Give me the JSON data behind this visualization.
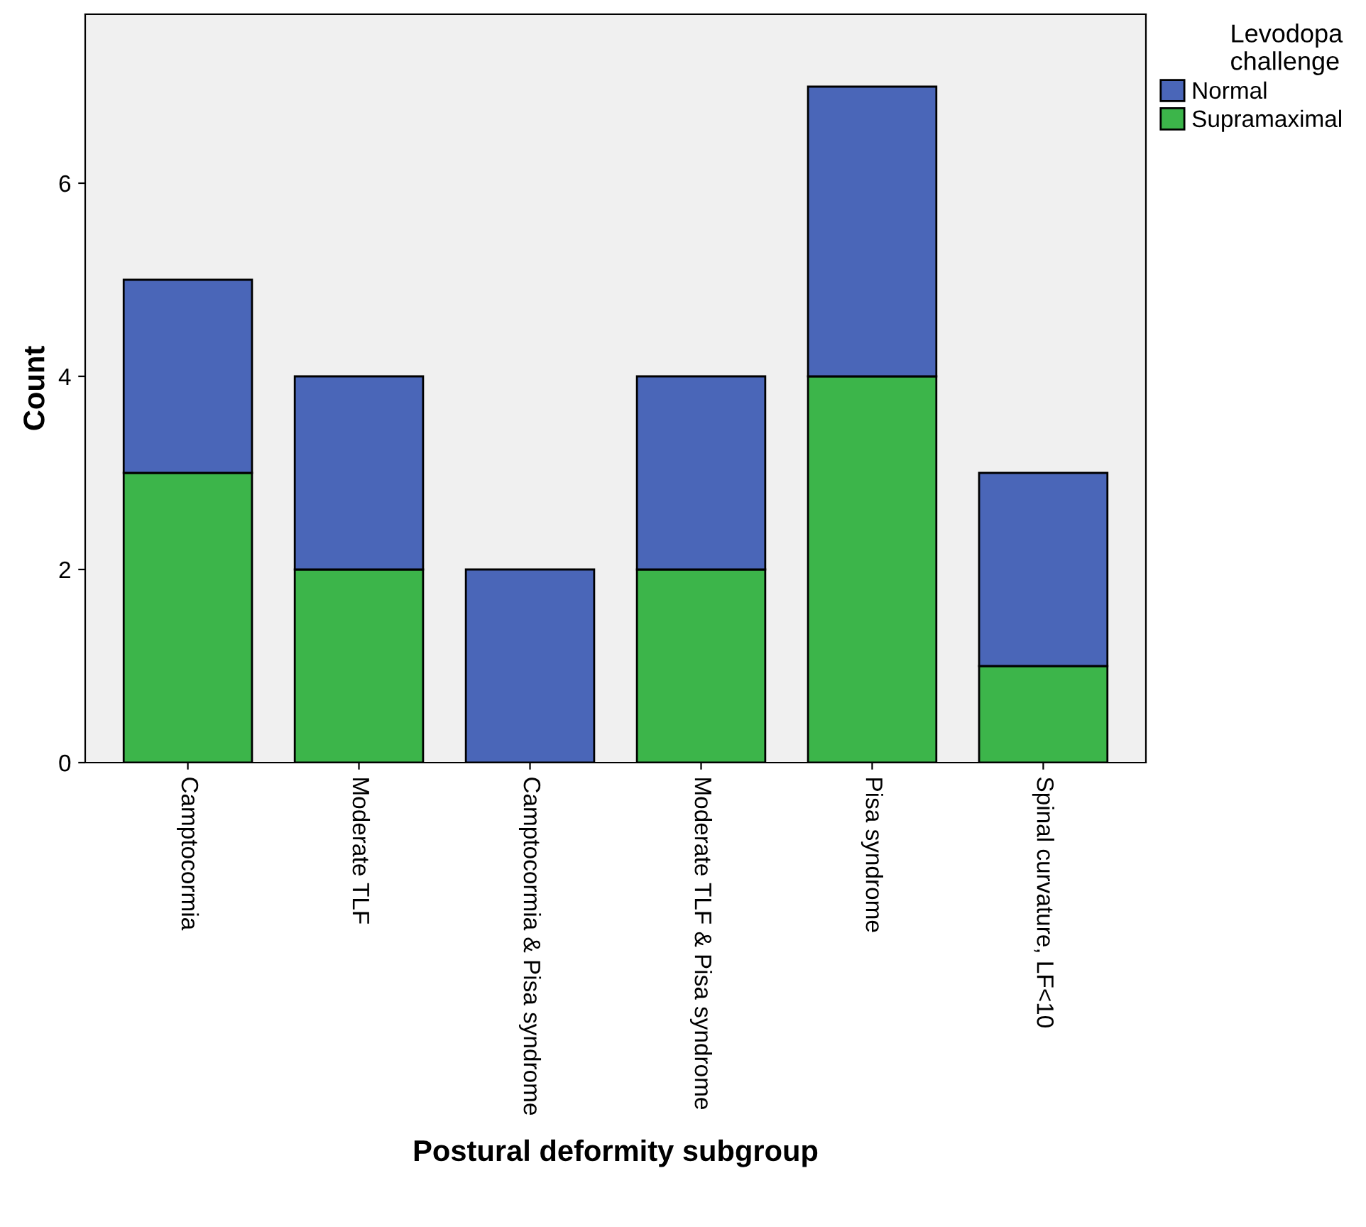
{
  "chart_data": {
    "type": "bar",
    "stacked": true,
    "xlabel": "Postural deformity subgroup",
    "ylabel": "Count",
    "legend_title": "Levodopa\nchallenge",
    "legend": "top right",
    "categories": [
      "Camptocormia",
      "Moderate TLF",
      "Camptocormia & Pisa syndrome",
      "Moderate TLF & Pisa syndrome",
      "Pisa syndrome",
      "Spinal curvature, LF<10"
    ],
    "series": [
      {
        "name": "Supramaximal",
        "color": "#3cb54a",
        "values": [
          3,
          2,
          0,
          2,
          4,
          1
        ]
      },
      {
        "name": "Normal",
        "color": "#4a66b8",
        "values": [
          2,
          2,
          2,
          2,
          3,
          2
        ]
      }
    ],
    "ylim": [
      0,
      7.75
    ],
    "yticks": [
      0,
      2,
      4,
      6
    ],
    "grid": false
  }
}
